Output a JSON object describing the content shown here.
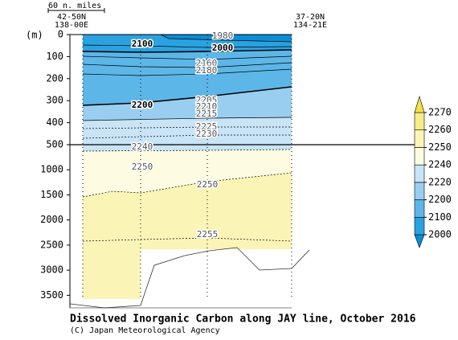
{
  "chart_data": {
    "type": "contour_section",
    "title": "Dissolved Inorganic Carbon along JAY line, October 2016",
    "credit": "(C) Japan Meteorological Agency",
    "y_label": "(m)",
    "scale_label": "60 n. miles",
    "left_station": [
      "42-50N",
      "138-00E"
    ],
    "right_station": [
      "37-20N",
      "134-21E"
    ],
    "upper_ylim": [
      0,
      500
    ],
    "upper_yticks": [
      0,
      100,
      200,
      300,
      400,
      500
    ],
    "lower_ylim": [
      500,
      3750
    ],
    "lower_yticks": [
      1000,
      1500,
      2000,
      2500,
      3000,
      3500
    ],
    "colorbar": {
      "levels": [
        2000,
        2100,
        2200,
        2220,
        2240,
        2250,
        2260,
        2270
      ],
      "colors": [
        "#0a8ed6",
        "#2aa2e1",
        "#5db6e8",
        "#99cef0",
        "#c8e4f6",
        "#fdfbe1",
        "#faf4b6",
        "#f6ec88",
        "#f2df4a"
      ]
    },
    "contour_labels": [
      1980,
      2100,
      2000,
      2160,
      2180,
      2200,
      2205,
      2210,
      2215,
      2225,
      2230,
      2240,
      2250,
      2250,
      2255
    ]
  }
}
